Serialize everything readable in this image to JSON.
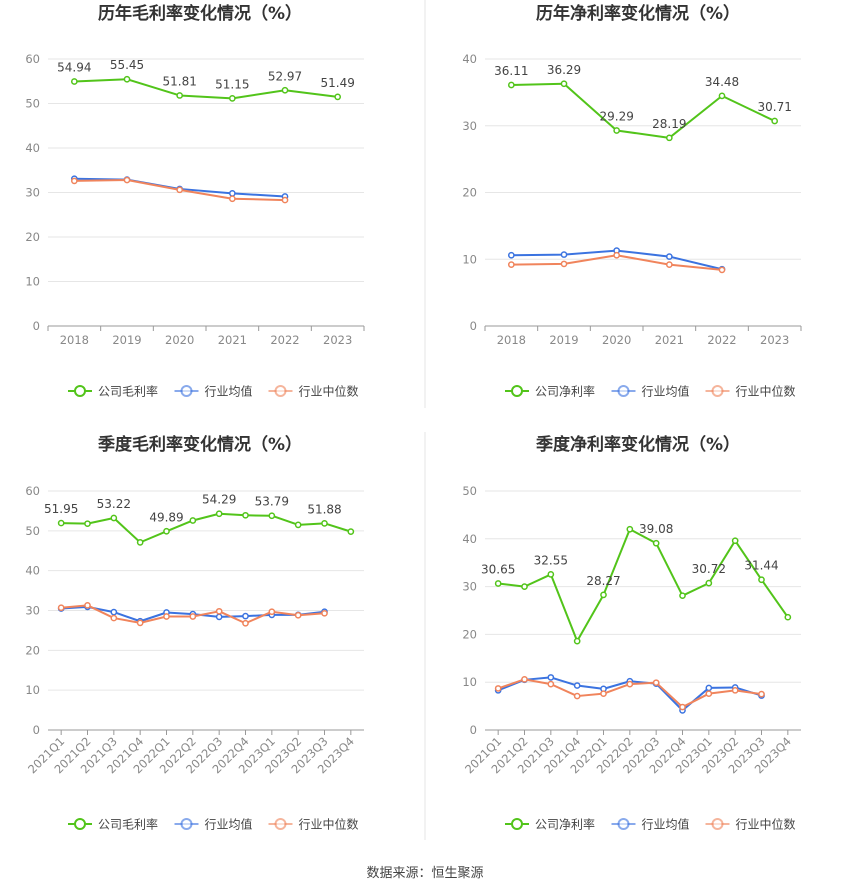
{
  "colors": {
    "company": "#52c41a",
    "avg": "#3b73e0",
    "median": "#f0845c",
    "grid": "#e6e6e6",
    "axis": "#999999",
    "divider": "#e5e5e5"
  },
  "footer": "数据来源：恒生聚源",
  "chart_data": [
    {
      "type": "line",
      "title": "历年毛利率变化情况（%）",
      "categories": [
        "2018",
        "2019",
        "2020",
        "2021",
        "2022",
        "2023"
      ],
      "ylim": [
        0,
        60
      ],
      "yticks": [
        0,
        10,
        20,
        30,
        40,
        50,
        60
      ],
      "legend_position": "bottom",
      "series": [
        {
          "name": "公司毛利率",
          "color": "#52c41a",
          "values": [
            54.94,
            55.45,
            51.81,
            51.15,
            52.97,
            51.49
          ],
          "labels": [
            "54.94",
            "55.45",
            "51.81",
            "51.15",
            "52.97",
            "51.49"
          ]
        },
        {
          "name": "行业均值",
          "color": "#3b73e0",
          "values": [
            33.1,
            32.9,
            30.8,
            29.8,
            29.1,
            null
          ]
        },
        {
          "name": "行业中位数",
          "color": "#f0845c",
          "values": [
            32.6,
            32.8,
            30.6,
            28.6,
            28.3,
            null
          ]
        }
      ]
    },
    {
      "type": "line",
      "title": "历年净利率变化情况（%）",
      "categories": [
        "2018",
        "2019",
        "2020",
        "2021",
        "2022",
        "2023"
      ],
      "ylim": [
        0,
        40
      ],
      "yticks": [
        0,
        10,
        20,
        30,
        40
      ],
      "legend_position": "bottom",
      "series": [
        {
          "name": "公司净利率",
          "color": "#52c41a",
          "values": [
            36.11,
            36.29,
            29.29,
            28.19,
            34.48,
            30.71
          ],
          "labels": [
            "36.11",
            "36.29",
            "29.29",
            "28.19",
            "34.48",
            "30.71"
          ]
        },
        {
          "name": "行业均值",
          "color": "#3b73e0",
          "values": [
            10.6,
            10.7,
            11.3,
            10.4,
            8.5,
            null
          ]
        },
        {
          "name": "行业中位数",
          "color": "#f0845c",
          "values": [
            9.2,
            9.3,
            10.6,
            9.2,
            8.4,
            null
          ]
        }
      ]
    },
    {
      "type": "line",
      "title": "季度毛利率变化情况（%）",
      "categories": [
        "2021Q1",
        "2021Q2",
        "2021Q3",
        "2021Q4",
        "2022Q1",
        "2022Q2",
        "2022Q3",
        "2022Q4",
        "2023Q1",
        "2023Q2",
        "2023Q3",
        "2023Q4"
      ],
      "ylim": [
        0,
        60
      ],
      "yticks": [
        0,
        10,
        20,
        30,
        40,
        50,
        60
      ],
      "legend_position": "bottom",
      "series": [
        {
          "name": "公司毛利率",
          "color": "#52c41a",
          "values": [
            51.95,
            51.8,
            53.22,
            47.1,
            49.89,
            52.6,
            54.29,
            53.9,
            53.79,
            51.5,
            51.88,
            49.8
          ],
          "labels": [
            "51.95",
            "",
            "53.22",
            "",
            "49.89",
            "",
            "54.29",
            "",
            "53.79",
            "",
            "51.88",
            ""
          ]
        },
        {
          "name": "行业均值",
          "color": "#3b73e0",
          "values": [
            30.5,
            30.9,
            29.6,
            27.3,
            29.5,
            29.1,
            28.4,
            28.6,
            28.9,
            28.9,
            29.7,
            null
          ]
        },
        {
          "name": "行业中位数",
          "color": "#f0845c",
          "values": [
            30.7,
            31.3,
            28.1,
            26.9,
            28.5,
            28.5,
            29.8,
            26.8,
            29.7,
            28.8,
            29.3,
            null
          ]
        }
      ]
    },
    {
      "type": "line",
      "title": "季度净利率变化情况（%）",
      "categories": [
        "2021Q1",
        "2021Q2",
        "2021Q3",
        "2021Q4",
        "2022Q1",
        "2022Q2",
        "2022Q3",
        "2022Q4",
        "2023Q1",
        "2023Q2",
        "2023Q3",
        "2023Q4"
      ],
      "ylim": [
        0,
        50
      ],
      "yticks": [
        0,
        10,
        20,
        30,
        40,
        50
      ],
      "legend_position": "bottom",
      "series": [
        {
          "name": "公司净利率",
          "color": "#52c41a",
          "values": [
            30.65,
            30.0,
            32.55,
            18.6,
            28.27,
            42.0,
            39.08,
            28.1,
            30.72,
            39.6,
            31.44,
            23.6
          ],
          "labels": [
            "30.65",
            "",
            "32.55",
            "",
            "28.27",
            "",
            "39.08",
            "",
            "30.72",
            "",
            "31.44",
            ""
          ]
        },
        {
          "name": "行业均值",
          "color": "#3b73e0",
          "values": [
            8.3,
            10.5,
            11.0,
            9.3,
            8.6,
            10.2,
            9.7,
            4.1,
            8.8,
            8.9,
            7.2,
            null
          ]
        },
        {
          "name": "行业中位数",
          "color": "#f0845c",
          "values": [
            8.7,
            10.6,
            9.6,
            7.1,
            7.6,
            9.6,
            9.9,
            4.8,
            7.6,
            8.3,
            7.5,
            null
          ]
        }
      ]
    }
  ]
}
